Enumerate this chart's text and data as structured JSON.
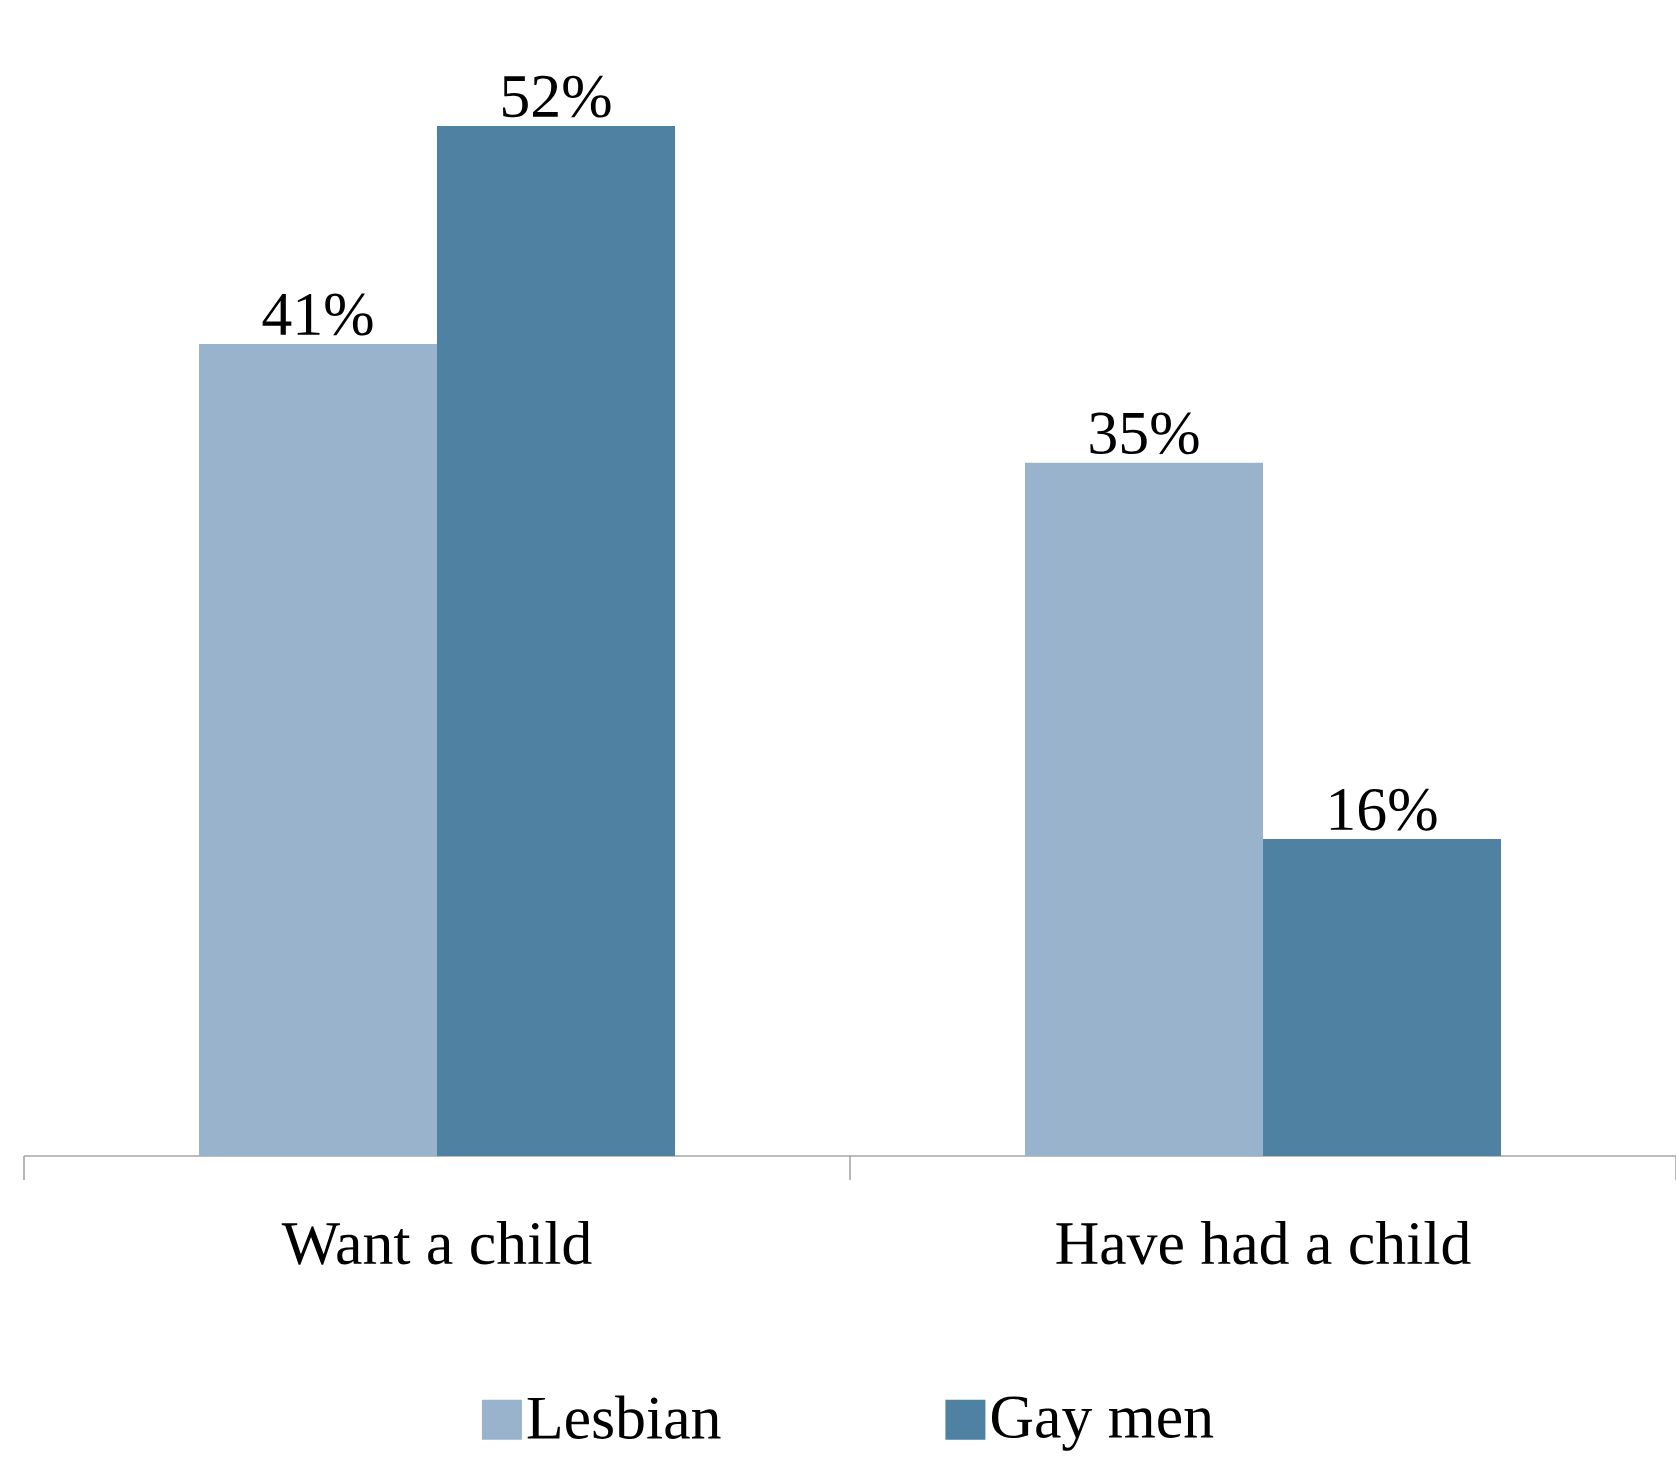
{
  "chart_data": {
    "type": "bar",
    "categories": [
      "Want a child",
      "Have had a child"
    ],
    "series": [
      {
        "name": "Lesbian",
        "color": "#98b3cb",
        "values": [
          41,
          35
        ],
        "value_labels": [
          "41%",
          "35%"
        ]
      },
      {
        "name": "Gay men",
        "color": "#4f81a2",
        "values": [
          52,
          16
        ],
        "value_labels": [
          "52%",
          "16%"
        ]
      }
    ],
    "legend": "bottom"
  }
}
